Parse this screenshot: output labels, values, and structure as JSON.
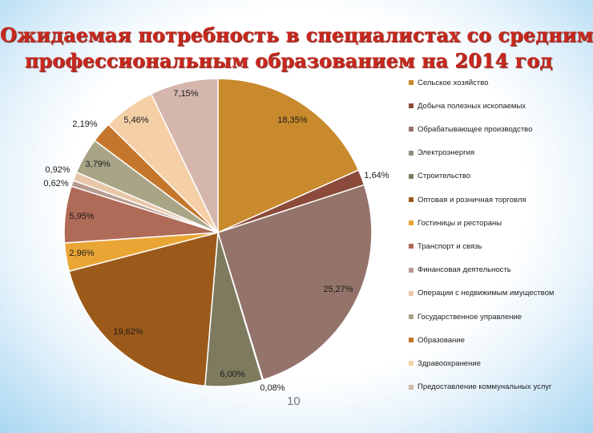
{
  "title_line1": "Ожидаемая потребность в специалистах со средним",
  "title_line2": "профессиональным образованием на 2014 год",
  "page_number": "10",
  "chart_data": {
    "type": "pie",
    "title": "Ожидаемая потребность в специалистах со средним профессиональным образованием на 2014 год",
    "legend_position": "right",
    "slices": [
      {
        "name": "Сельское хозяйство",
        "value": 18.35,
        "label": "18,35%",
        "color": "#c88a2c"
      },
      {
        "name": "Добыча полезных ископаемых",
        "value": 1.64,
        "label": "1,64%",
        "color": "#8b4a3a"
      },
      {
        "name": "Обрабатывающее производство",
        "value": 25.27,
        "label": "25,27%",
        "color": "#94736a"
      },
      {
        "name": "Электроэнергия",
        "value": 0.08,
        "label": "0,08%",
        "color": "#8e8f82"
      },
      {
        "name": "Строительство",
        "value": 6.0,
        "label": "6,00%",
        "color": "#7d7a5e"
      },
      {
        "name": "Оптовая и розничная торговля",
        "value": 19.62,
        "label": "19,62%",
        "color": "#9c5a1a"
      },
      {
        "name": "Гостиницы и рестораны",
        "value": 2.96,
        "label": "2,96%",
        "color": "#eaa634"
      },
      {
        "name": "Транспорт и связь",
        "value": 5.95,
        "label": "5,95%",
        "color": "#b06a58"
      },
      {
        "name": "Финансовая деятельность",
        "value": 0.62,
        "label": "0,62%",
        "color": "#b69a90"
      },
      {
        "name": "Операции с недвижимым имуществом",
        "value": 0.92,
        "label": "0,92%",
        "color": "#e8c7a8"
      },
      {
        "name": "Государственное управление",
        "value": 3.79,
        "label": "3,79%",
        "color": "#a8a486"
      },
      {
        "name": "Образование",
        "value": 2.19,
        "label": "2,19%",
        "color": "#c4772c"
      },
      {
        "name": "Здравоохранение",
        "value": 5.46,
        "label": "5,46%",
        "color": "#f5cfa6"
      },
      {
        "name": "Предоставление коммунальных услуг",
        "value": 7.15,
        "label": "7,15%",
        "color": "#d4b6ad"
      }
    ]
  }
}
